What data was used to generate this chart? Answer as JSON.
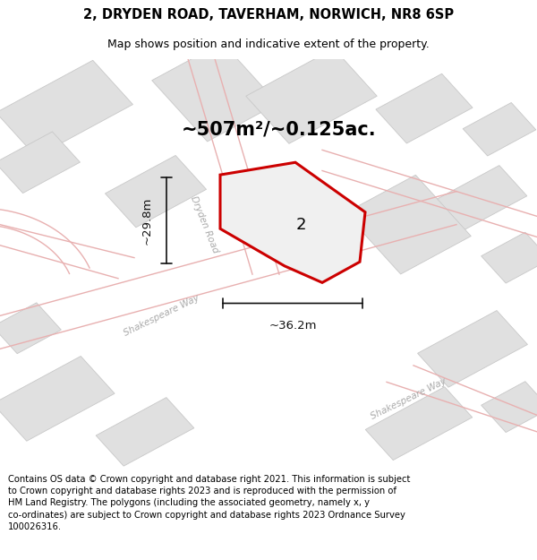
{
  "title": "2, DRYDEN ROAD, TAVERHAM, NORWICH, NR8 6SP",
  "subtitle": "Map shows position and indicative extent of the property.",
  "footer": "Contains OS data © Crown copyright and database right 2021. This information is subject to Crown copyright and database rights 2023 and is reproduced with the permission of HM Land Registry. The polygons (including the associated geometry, namely x, y co-ordinates) are subject to Crown copyright and database rights 2023 Ordnance Survey 100026316.",
  "area_label": "~507m²/~0.125ac.",
  "plot_number": "2",
  "dim_height": "~29.8m",
  "dim_width": "~36.2m",
  "map_bg": "#f7f7f7",
  "plot_fill": "#f0f0f0",
  "plot_stroke": "#cc0000",
  "building_fill": "#e0e0e0",
  "building_edge": "#c8c8c8",
  "road_outline": "#e8b0b0",
  "road_label_color": "#aaaaaa",
  "dim_color": "#111111",
  "title_fontsize": 10.5,
  "subtitle_fontsize": 9,
  "footer_fontsize": 7.2,
  "area_fontsize": 15,
  "plot_num_fontsize": 13,
  "dim_fontsize": 9.5,
  "road_label_fontsize": 7.5
}
